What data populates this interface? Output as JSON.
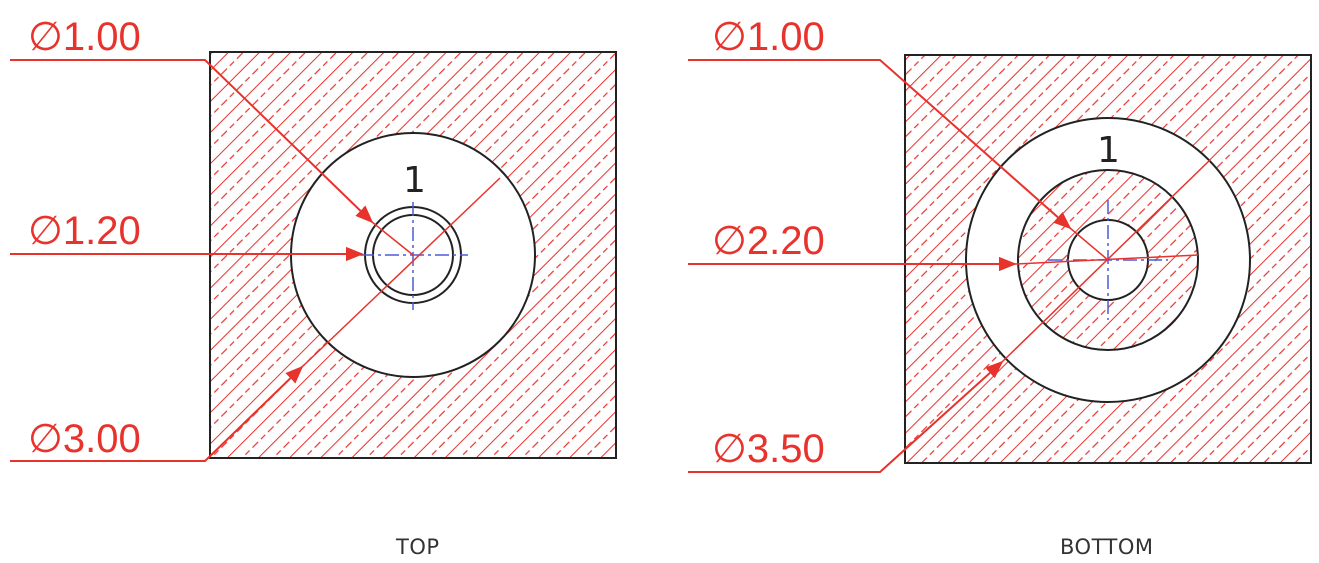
{
  "views": [
    {
      "caption": "TOP",
      "callouts": {
        "d_outer": "∅1.00",
        "d_mid": "∅1.20",
        "d_big": "∅3.00"
      },
      "hole_label": "1"
    },
    {
      "caption": "BOTTOM",
      "callouts": {
        "d_outer": "∅1.00",
        "d_mid": "∅2.20",
        "d_big": "∅3.50"
      },
      "hole_label": "1"
    }
  ],
  "colors": {
    "dimension": "#e8322c",
    "outline": "#222222",
    "centerline": "#4a5bd8",
    "hatch": "#e8322c"
  }
}
